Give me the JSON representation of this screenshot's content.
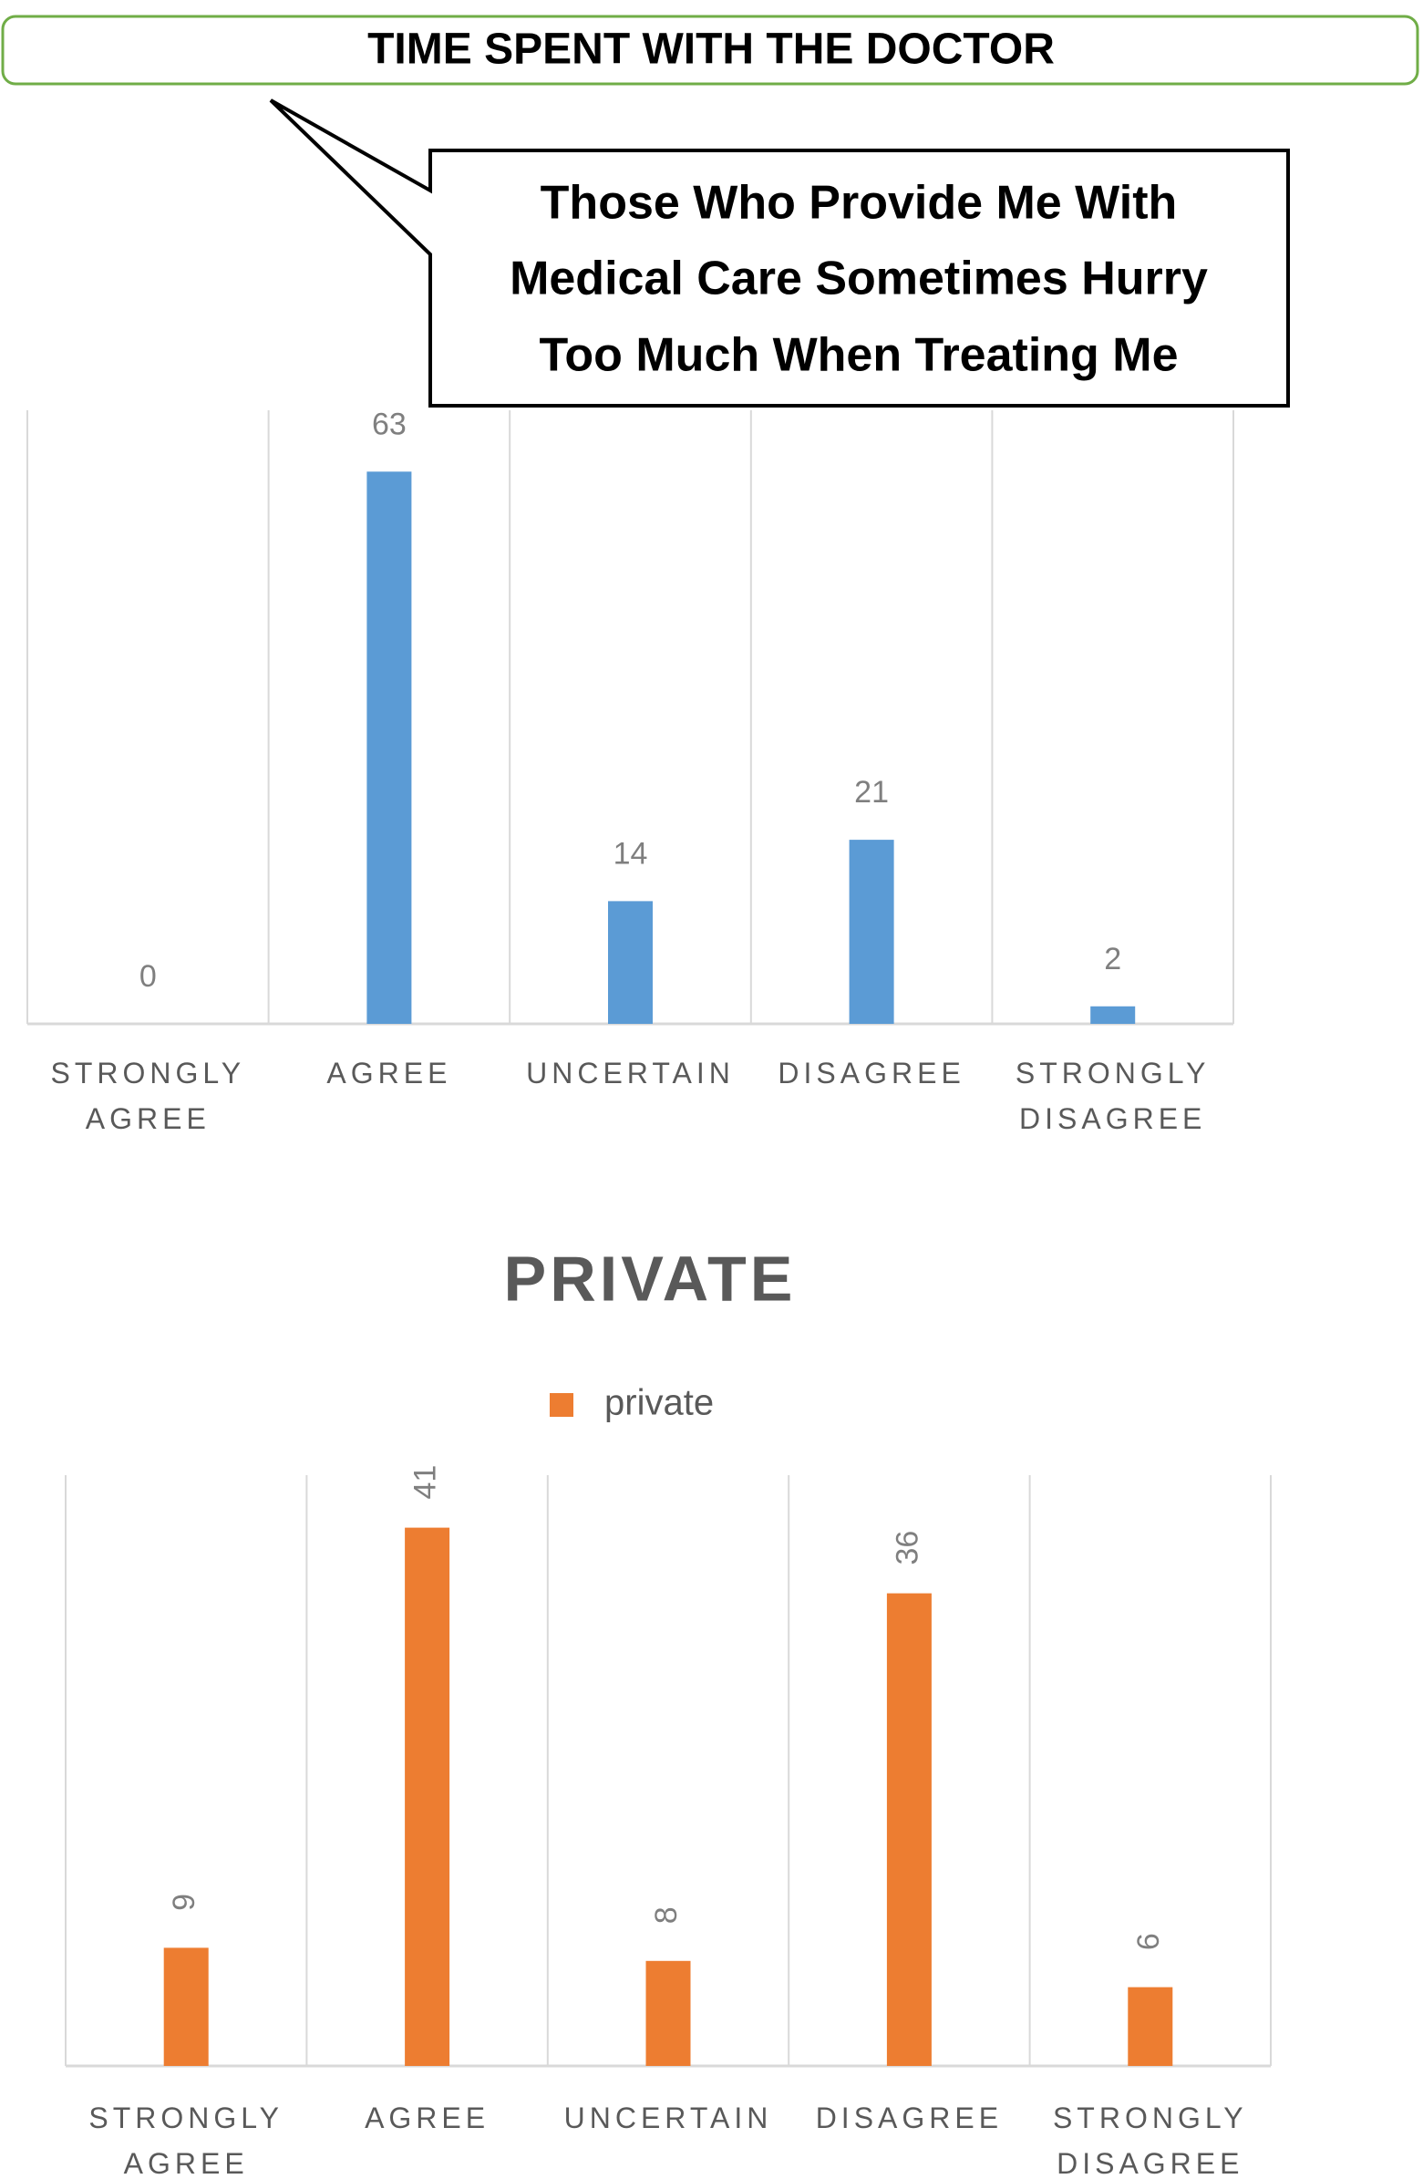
{
  "header": {
    "title": "TIME SPENT WITH THE DOCTOR"
  },
  "chart_data": [
    {
      "type": "bar",
      "annotation": [
        "Those Who Provide Me With",
        "Medical Care Sometimes Hurry",
        "Too Much When Treating Me"
      ],
      "categories": [
        "STRONGLY AGREE",
        "AGREE",
        "UNCERTAIN",
        "DISAGREE",
        "STRONGLY DISAGREE"
      ],
      "values": [
        0,
        63,
        14,
        21,
        2
      ],
      "color": "#5b9bd5",
      "ylim": [
        0,
        70
      ]
    },
    {
      "type": "bar",
      "title": "PRIVATE",
      "categories": [
        "STRONGLY AGREE",
        "AGREE",
        "UNCERTAIN",
        "DISAGREE",
        "STRONGLY DISAGREE"
      ],
      "series": [
        {
          "name": "private",
          "color": "#ed7d31",
          "values": [
            9,
            41,
            8,
            36,
            6
          ]
        }
      ],
      "ylim": [
        0,
        45
      ],
      "legend": "top",
      "value_label_rotation": -90
    }
  ]
}
